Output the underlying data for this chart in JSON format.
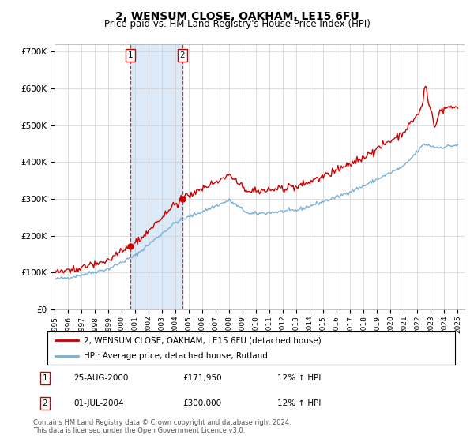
{
  "title": "2, WENSUM CLOSE, OAKHAM, LE15 6FU",
  "subtitle": "Price paid vs. HM Land Registry's House Price Index (HPI)",
  "legend_line1": "2, WENSUM CLOSE, OAKHAM, LE15 6FU (detached house)",
  "legend_line2": "HPI: Average price, detached house, Rutland",
  "footer": "Contains HM Land Registry data © Crown copyright and database right 2024.\nThis data is licensed under the Open Government Licence v3.0.",
  "sale1_label": "1",
  "sale1_date": "25-AUG-2000",
  "sale1_price": "£171,950",
  "sale1_hpi": "12% ↑ HPI",
  "sale1_year": 2000.65,
  "sale1_value": 171950,
  "sale2_label": "2",
  "sale2_date": "01-JUL-2004",
  "sale2_price": "£300,000",
  "sale2_hpi": "12% ↑ HPI",
  "sale2_year": 2004.5,
  "sale2_value": 300000,
  "hpi_color": "#7bafd4",
  "price_color": "#cc0000",
  "highlight_color": "#dce9f7",
  "ylim": [
    0,
    720000
  ],
  "yticks": [
    0,
    100000,
    200000,
    300000,
    400000,
    500000,
    600000,
    700000
  ],
  "xmin": 1995.0,
  "xmax": 2025.5,
  "xticks": [
    1995,
    1996,
    1997,
    1998,
    1999,
    2000,
    2001,
    2002,
    2003,
    2004,
    2005,
    2006,
    2007,
    2008,
    2009,
    2010,
    2011,
    2012,
    2013,
    2014,
    2015,
    2016,
    2017,
    2018,
    2019,
    2020,
    2021,
    2022,
    2023,
    2024,
    2025
  ]
}
